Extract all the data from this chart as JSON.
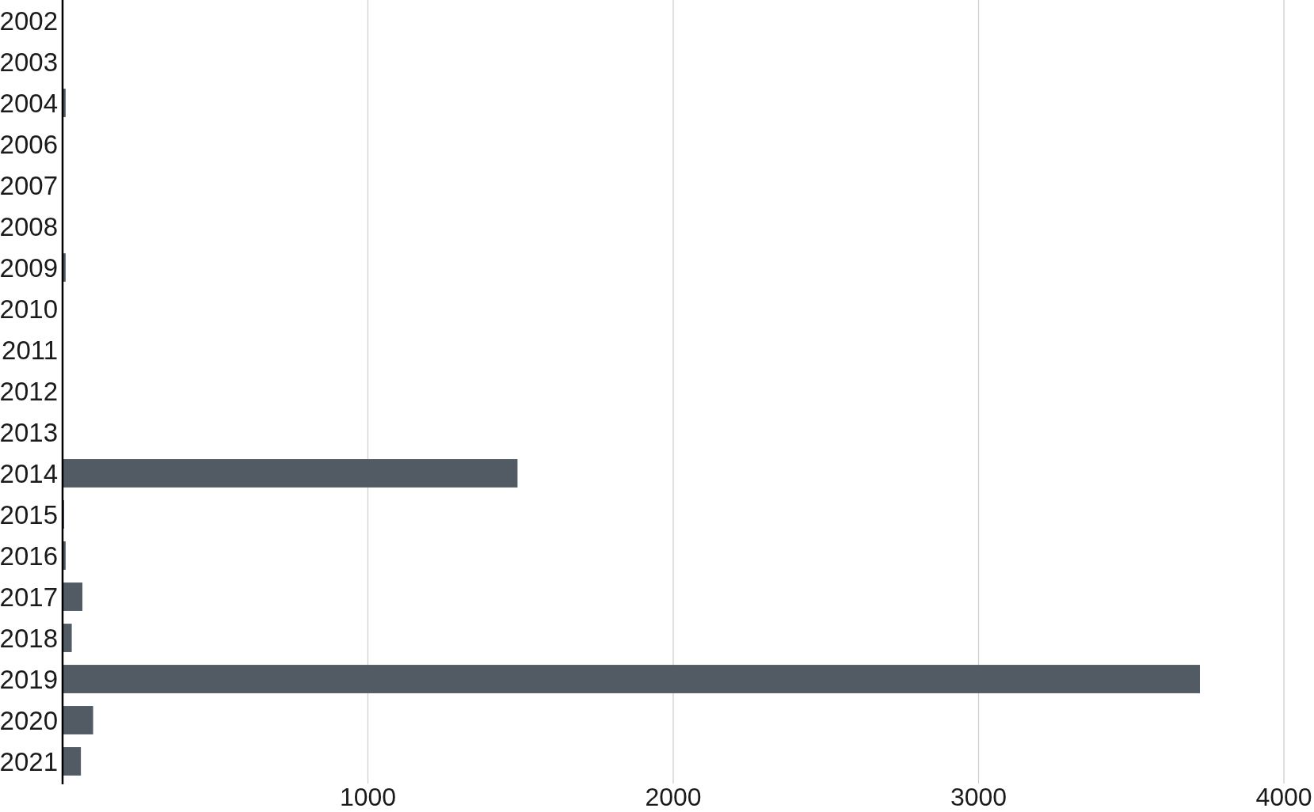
{
  "chart_data": {
    "type": "bar",
    "orientation": "horizontal",
    "categories": [
      "2002",
      "2003",
      "2004",
      "2006",
      "2007",
      "2008",
      "2009",
      "2010",
      "2011",
      "2012",
      "2013",
      "2014",
      "2015",
      "2016",
      "2017",
      "2018",
      "2019",
      "2020",
      "2021"
    ],
    "values": [
      0,
      0,
      10,
      0,
      0,
      0,
      10,
      0,
      0,
      0,
      0,
      1490,
      5,
      10,
      65,
      30,
      3725,
      100,
      60
    ],
    "color": "#525a63",
    "xlim": [
      0,
      4000
    ],
    "xticks": [
      1000,
      2000,
      3000,
      4000
    ],
    "grid": "x"
  }
}
